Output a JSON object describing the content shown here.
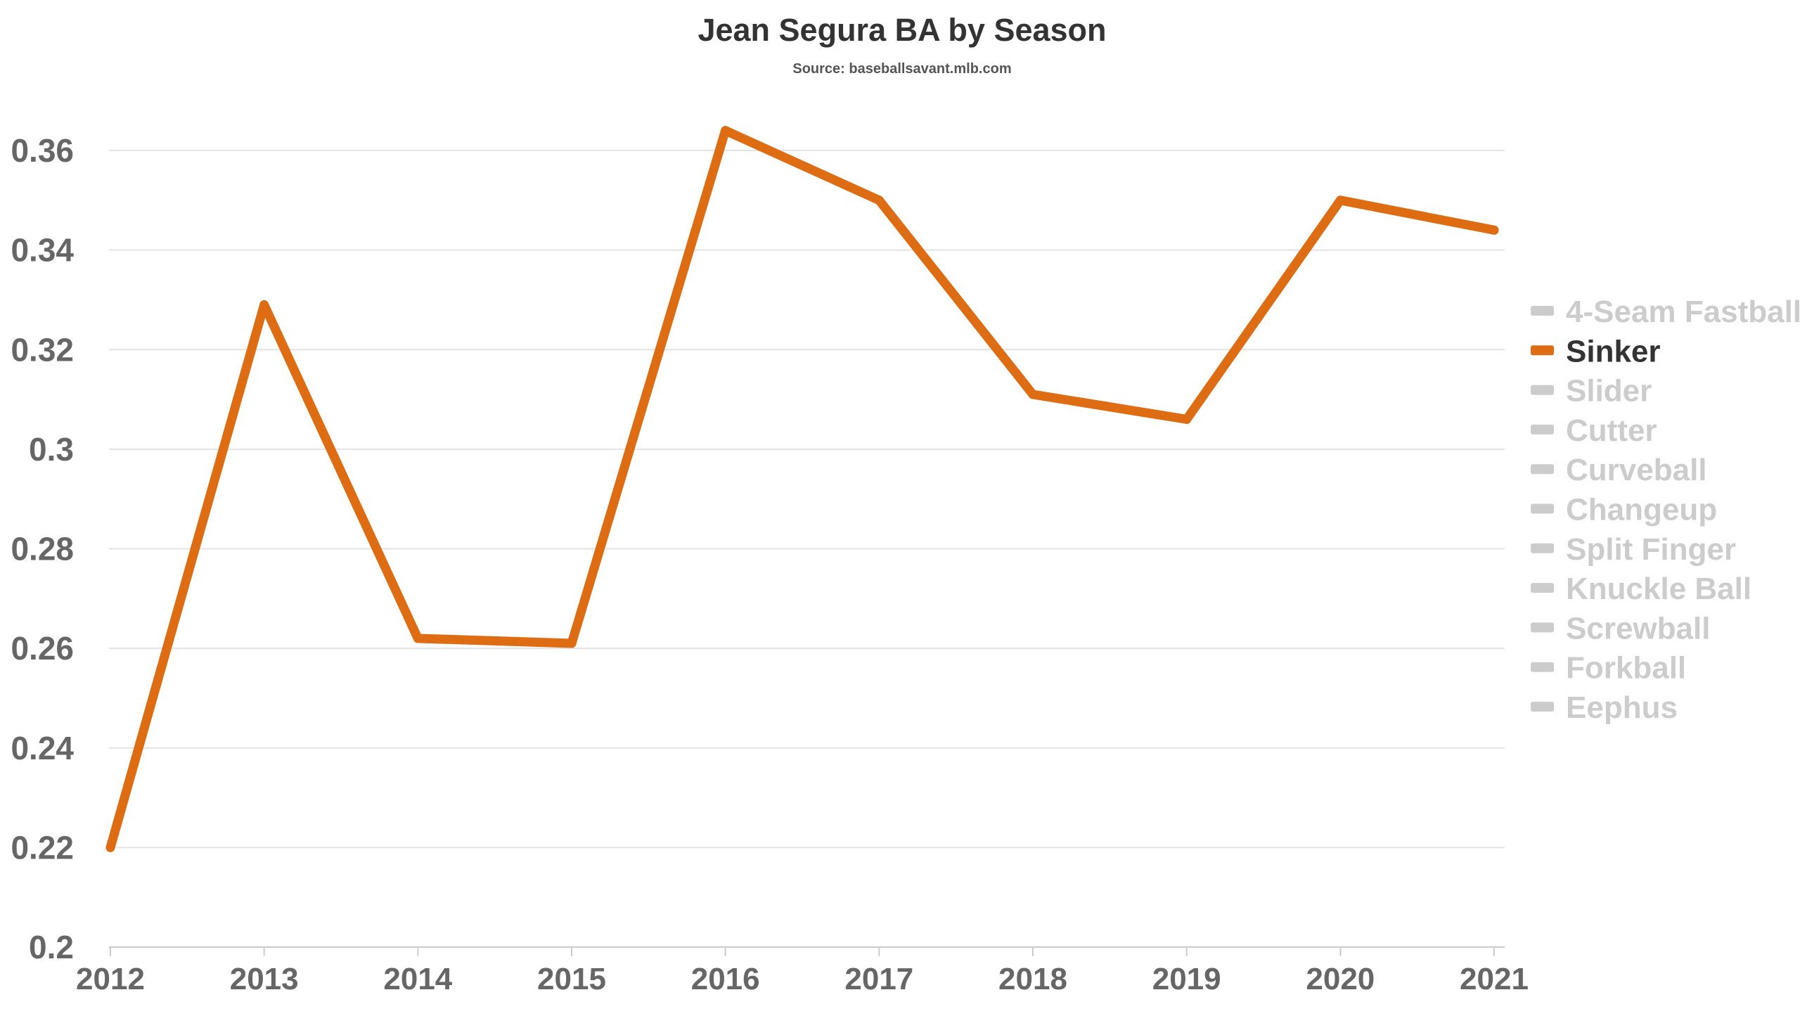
{
  "chart_data": {
    "type": "line",
    "title": "Jean Segura BA by Season",
    "subtitle": "Source: baseballsavant.mlb.com",
    "xlabel": "",
    "ylabel": "",
    "categories": [
      "2012",
      "2013",
      "2014",
      "2015",
      "2016",
      "2017",
      "2018",
      "2019",
      "2020",
      "2021"
    ],
    "ylim": [
      0.2,
      0.37
    ],
    "yticks": [
      "0.2",
      "0.22",
      "0.24",
      "0.26",
      "0.28",
      "0.3",
      "0.32",
      "0.34",
      "0.36"
    ],
    "grid": true,
    "legend_position": "right",
    "series": [
      {
        "name": "Sinker",
        "color": "#dd6c12",
        "values": [
          0.22,
          0.329,
          0.262,
          0.261,
          0.364,
          0.35,
          0.311,
          0.306,
          0.35,
          0.344
        ]
      }
    ],
    "legend": [
      {
        "name": "4-Seam Fastball",
        "active": false
      },
      {
        "name": "Sinker",
        "active": true
      },
      {
        "name": "Slider",
        "active": false
      },
      {
        "name": "Cutter",
        "active": false
      },
      {
        "name": "Curveball",
        "active": false
      },
      {
        "name": "Changeup",
        "active": false
      },
      {
        "name": "Split Finger",
        "active": false
      },
      {
        "name": "Knuckle Ball",
        "active": false
      },
      {
        "name": "Screwball",
        "active": false
      },
      {
        "name": "Forkball",
        "active": false
      },
      {
        "name": "Eephus",
        "active": false
      }
    ],
    "colors": {
      "active_series": "#dd6c12",
      "inactive_legend": "#cccccc",
      "active_legend_text": "#333333",
      "grid": "#e3e3e3",
      "axis": "#cccccc",
      "tick_text": "#666666"
    }
  }
}
